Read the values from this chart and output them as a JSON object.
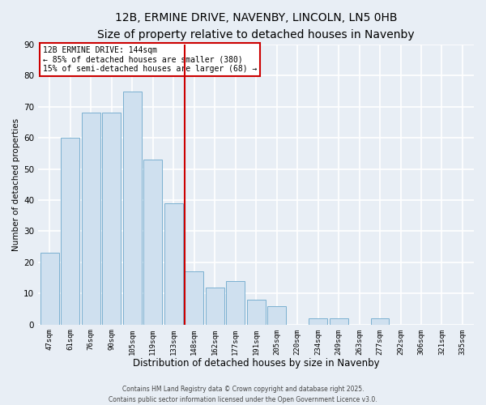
{
  "title": "12B, ERMINE DRIVE, NAVENBY, LINCOLN, LN5 0HB",
  "subtitle": "Size of property relative to detached houses in Navenby",
  "xlabel": "Distribution of detached houses by size in Navenby",
  "ylabel": "Number of detached properties",
  "categories": [
    "47sqm",
    "61sqm",
    "76sqm",
    "90sqm",
    "105sqm",
    "119sqm",
    "133sqm",
    "148sqm",
    "162sqm",
    "177sqm",
    "191sqm",
    "205sqm",
    "220sqm",
    "234sqm",
    "249sqm",
    "263sqm",
    "277sqm",
    "292sqm",
    "306sqm",
    "321sqm",
    "335sqm"
  ],
  "values": [
    23,
    60,
    68,
    68,
    75,
    53,
    39,
    17,
    12,
    14,
    8,
    6,
    0,
    2,
    2,
    0,
    2,
    0,
    0,
    0,
    0
  ],
  "bar_color": "#cfe0ef",
  "bar_edge_color": "#7ab0d0",
  "vline_x_index": 7,
  "vline_color": "#cc0000",
  "ylim": [
    0,
    90
  ],
  "yticks": [
    0,
    10,
    20,
    30,
    40,
    50,
    60,
    70,
    80,
    90
  ],
  "annotation_text": "12B ERMINE DRIVE: 144sqm\n← 85% of detached houses are smaller (380)\n15% of semi-detached houses are larger (68) →",
  "annotation_box_color": "#ffffff",
  "annotation_box_edge": "#cc0000",
  "footer_line1": "Contains HM Land Registry data © Crown copyright and database right 2025.",
  "footer_line2": "Contains public sector information licensed under the Open Government Licence v3.0.",
  "background_color": "#e8eef5",
  "grid_color": "#ffffff",
  "title_fontsize": 10,
  "subtitle_fontsize": 9
}
